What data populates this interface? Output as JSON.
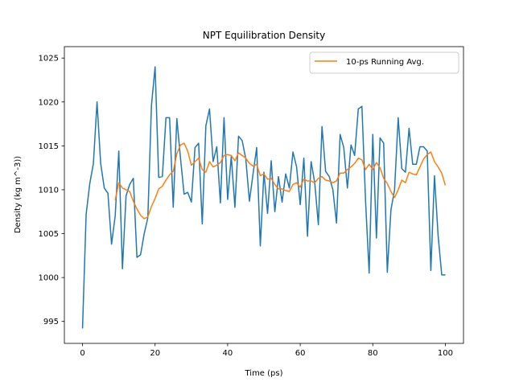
{
  "chart_data": {
    "type": "line",
    "title": "NPT Equilibration Density",
    "xlabel": "Time (ps)",
    "ylabel": "Density (kg m^-3))",
    "xlim": [
      -5,
      105
    ],
    "ylim": [
      992.5,
      1026.3
    ],
    "xticks": [
      0,
      20,
      40,
      60,
      80,
      100
    ],
    "yticks": [
      995,
      1000,
      1005,
      1010,
      1015,
      1020,
      1025
    ],
    "grid": false,
    "legend_position": "top-right",
    "series": [
      {
        "name": "",
        "color": "#1f77b4",
        "x": [
          0,
          1,
          2,
          3,
          4,
          5,
          6,
          7,
          8,
          9,
          10,
          11,
          12,
          13,
          14,
          15,
          16,
          17,
          18,
          19,
          20,
          21,
          22,
          23,
          24,
          25,
          26,
          27,
          28,
          29,
          30,
          31,
          32,
          33,
          34,
          35,
          36,
          37,
          38,
          39,
          40,
          41,
          42,
          43,
          44,
          45,
          46,
          47,
          48,
          49,
          50,
          51,
          52,
          53,
          54,
          55,
          56,
          57,
          58,
          59,
          60,
          61,
          62,
          63,
          64,
          65,
          66,
          67,
          68,
          69,
          70,
          71,
          72,
          73,
          74,
          75,
          76,
          77,
          78,
          79,
          80,
          81,
          82,
          83,
          84,
          85,
          86,
          87,
          88,
          89,
          90,
          91,
          92,
          93,
          94,
          95,
          96,
          97,
          98,
          99,
          100
        ],
        "y": [
          994.2,
          1007.2,
          1010.7,
          1013.0,
          1020.0,
          1013.0,
          1010.2,
          1009.6,
          1003.8,
          1007.0,
          1014.4,
          1001.0,
          1009.3,
          1010.6,
          1011.3,
          1002.3,
          1002.6,
          1005.0,
          1006.8,
          1019.6,
          1024.0,
          1011.4,
          1011.5,
          1018.2,
          1018.2,
          1008.0,
          1018.1,
          1013.6,
          1009.5,
          1009.7,
          1008.6,
          1014.8,
          1015.3,
          1006.1,
          1017.3,
          1019.2,
          1013.2,
          1014.9,
          1008.5,
          1018.2,
          1008.9,
          1013.8,
          1008.0,
          1016.1,
          1015.6,
          1013.5,
          1008.7,
          1011.8,
          1014.8,
          1003.6,
          1012.0,
          1007.3,
          1013.3,
          1007.5,
          1011.5,
          1008.6,
          1011.8,
          1010.2,
          1014.3,
          1012.6,
          1008.3,
          1013.6,
          1004.7,
          1013.2,
          1010.8,
          1006.0,
          1017.2,
          1012.1,
          1011.5,
          1010.0,
          1006.2,
          1016.3,
          1014.8,
          1010.2,
          1015.1,
          1013.9,
          1019.2,
          1019.5,
          1008.8,
          1000.5,
          1016.3,
          1004.5,
          1015.9,
          1015.3,
          1000.6,
          1007.7,
          1010.0,
          1018.2,
          1012.4,
          1012.0,
          1017.0,
          1012.9,
          1012.9,
          1014.9,
          1014.9,
          1014.4,
          1000.8,
          1011.6,
          1004.8,
          1000.3,
          1000.3
        ]
      },
      {
        "name": "10-ps Running Avg.",
        "color": "#ff7f0e",
        "x": [
          9,
          10,
          11,
          12,
          13,
          14,
          15,
          16,
          17,
          18,
          19,
          20,
          21,
          22,
          23,
          24,
          25,
          26,
          27,
          28,
          29,
          30,
          31,
          32,
          33,
          34,
          35,
          36,
          37,
          38,
          39,
          40,
          41,
          42,
          43,
          44,
          45,
          46,
          47,
          48,
          49,
          50,
          51,
          52,
          53,
          54,
          55,
          56,
          57,
          58,
          59,
          60,
          61,
          62,
          63,
          64,
          65,
          66,
          67,
          68,
          69,
          70,
          71,
          72,
          73,
          74,
          75,
          76,
          77,
          78,
          79,
          80,
          81,
          82,
          83,
          84,
          85,
          86,
          87,
          88,
          89,
          90,
          91,
          92,
          93,
          94,
          95,
          96,
          97,
          98,
          99,
          100
        ],
        "y": [
          1008.8,
          1010.8,
          1010.2,
          1010.0,
          1009.8,
          1008.7,
          1007.8,
          1007.1,
          1006.7,
          1006.9,
          1008.1,
          1009.0,
          1010.1,
          1010.4,
          1011.1,
          1011.7,
          1012.1,
          1014.1,
          1015.1,
          1015.3,
          1014.4,
          1012.8,
          1013.2,
          1013.6,
          1012.3,
          1012.0,
          1013.2,
          1012.6,
          1012.8,
          1013.1,
          1013.9,
          1014.0,
          1013.9,
          1013.3,
          1014.2,
          1013.9,
          1013.6,
          1013.0,
          1012.7,
          1012.9,
          1011.6,
          1011.8,
          1011.2,
          1011.3,
          1010.6,
          1010.1,
          1010.1,
          1009.9,
          1009.8,
          1010.6,
          1010.8,
          1010.3,
          1011.2,
          1011.0,
          1011.0,
          1010.8,
          1011.3,
          1011.5,
          1011.1,
          1011.0,
          1010.8,
          1011.0,
          1011.9,
          1011.9,
          1012.3,
          1012.6,
          1013.0,
          1013.6,
          1013.4,
          1012.3,
          1012.9,
          1012.3,
          1013.1,
          1012.5,
          1011.3,
          1010.7,
          1009.8,
          1009.1,
          1010.0,
          1011.1,
          1010.8,
          1012.0,
          1011.8,
          1011.7,
          1012.6,
          1013.5,
          1014.0,
          1014.3,
          1013.2,
          1012.6,
          1011.9,
          1010.5
        ]
      }
    ]
  }
}
